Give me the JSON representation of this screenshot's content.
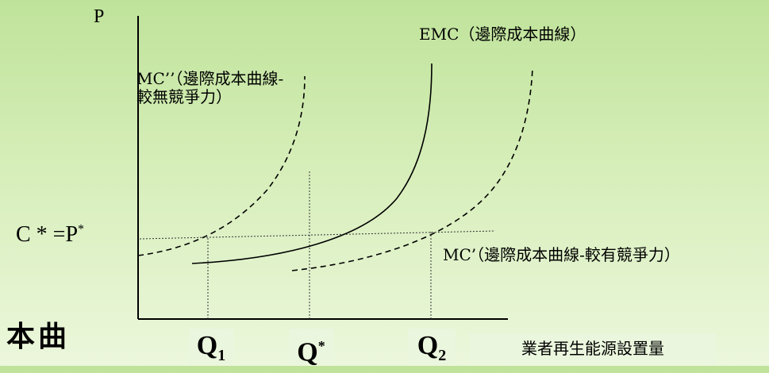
{
  "axes": {
    "y_label": "P",
    "x_label": "業者再生能源設置量"
  },
  "curves": {
    "emc_label": "EMC（邊際成本曲線）",
    "mc_double_prime_label_line1": "MC’’（邊際成本曲線-",
    "mc_double_prime_label_line2": "較無競爭力）",
    "mc_prime_label": "MC’（邊際成本曲線-較有競爭力）"
  },
  "price_label": {
    "base": "C * =P",
    "sup": "*"
  },
  "quantity_labels": {
    "q1": {
      "base": "Q",
      "sub": "1"
    },
    "qstar": {
      "base": "Q",
      "sup": "*"
    },
    "q2": {
      "base": "Q",
      "sub": "2"
    }
  },
  "leftover_text": "本曲",
  "colors": {
    "line": "#000000"
  }
}
